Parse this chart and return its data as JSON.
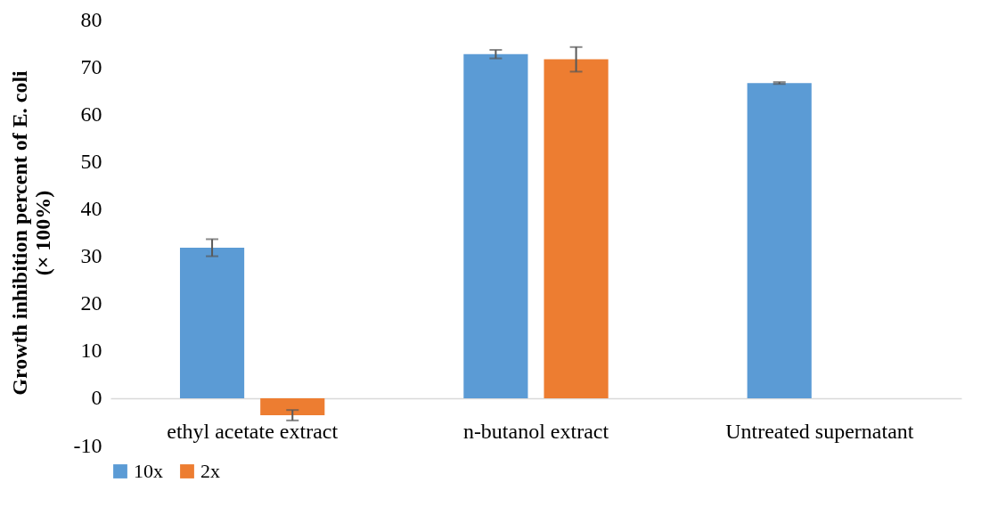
{
  "chart_data": {
    "type": "bar",
    "ylabel": "Growth inhibition percent of E. coli (× 100%)",
    "categories": [
      "ethyl acetate extract",
      "n-butanol extract",
      "Untreated supernatant"
    ],
    "series": [
      {
        "name": "10x",
        "color": "#5b9bd5",
        "values": [
          31.8,
          72.7,
          66.6
        ],
        "errors": [
          1.8,
          0.9,
          0.2
        ]
      },
      {
        "name": "2x",
        "color": "#ed7d31",
        "values": [
          -3.6,
          71.6,
          null
        ],
        "errors": [
          1.1,
          2.6,
          null
        ]
      }
    ],
    "ylim": [
      -10,
      80
    ],
    "yticks": [
      -10,
      0,
      10,
      20,
      30,
      40,
      50,
      60,
      70,
      80
    ],
    "grid": false,
    "legend": "bottom"
  }
}
